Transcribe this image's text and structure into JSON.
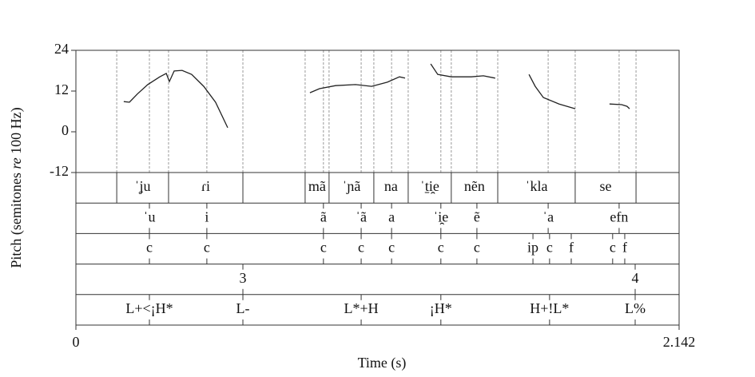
{
  "chart_data": {
    "type": "line",
    "ylabel": [
      "Pitch (semitones ",
      "re",
      " 100 Hz)"
    ],
    "xlabel": "Time (s)",
    "xlim": [
      0,
      2.142
    ],
    "xticks": [
      0,
      2.142
    ],
    "ylim": [
      -12,
      24
    ],
    "yticks": [
      -12,
      0,
      12,
      24
    ],
    "x": [
      0.17,
      0.19,
      0.218,
      0.255,
      0.298,
      0.321,
      0.332,
      0.349,
      0.377,
      0.411,
      0.454,
      0.496,
      0.539,
      null,
      0.831,
      0.865,
      0.922,
      0.993,
      1.05,
      1.106,
      1.149,
      1.169,
      null,
      1.26,
      1.285,
      1.333,
      1.404,
      1.447,
      1.489,
      null,
      1.609,
      1.631,
      1.66,
      1.716,
      1.773,
      null,
      1.895,
      1.938,
      1.957,
      1.966
    ],
    "series": [
      {
        "color": "#222222",
        "values": [
          8.9,
          8.7,
          11.1,
          13.9,
          16.2,
          17.2,
          14.8,
          17.9,
          18.1,
          16.9,
          13.4,
          8.7,
          1.2,
          null,
          11.5,
          12.7,
          13.6,
          13.9,
          13.4,
          14.6,
          16.2,
          15.8,
          null,
          20.0,
          16.9,
          16.2,
          16.2,
          16.5,
          15.8,
          null,
          16.9,
          13.4,
          10.1,
          8.2,
          6.8,
          null,
          8.2,
          8.0,
          7.5,
          6.8
        ]
      }
    ],
    "tiers": [
      {
        "kind": "interval",
        "boundaries": [
          0.145,
          0.329,
          0.593,
          0.814,
          0.899,
          1.058,
          1.18,
          1.333,
          1.498,
          1.773,
          1.989
        ],
        "labels": [
          "ˈʝu",
          "ɾi",
          null,
          "mã",
          "ˈɲã",
          "na",
          "ˈt̠i̯e",
          "nẽn",
          "ˈkla",
          "se"
        ]
      },
      {
        "kind": "point",
        "times": [
          0.261,
          0.465,
          0.879,
          1.013,
          1.121,
          1.296,
          1.424,
          1.677,
          1.929
        ],
        "labels": [
          "ˈu",
          "i",
          "ã",
          "ˈã",
          "a",
          "ˈi̯e",
          "ẽ",
          "ˈa",
          "efn"
        ]
      },
      {
        "kind": "point",
        "times": [
          0.261,
          0.465,
          0.879,
          1.013,
          1.121,
          1.296,
          1.424,
          1.623,
          1.682,
          1.759,
          1.906,
          1.949
        ],
        "labels": [
          "c",
          "c",
          "c",
          "c",
          "c",
          "c",
          "c",
          "ip",
          "c",
          "f",
          "c",
          "f"
        ]
      },
      {
        "kind": "point",
        "times": [
          0.593,
          1.986
        ],
        "labels": [
          "3",
          "4"
        ]
      },
      {
        "kind": "point",
        "times": [
          0.261,
          0.593,
          1.013,
          1.296,
          1.682,
          1.986
        ],
        "labels": [
          "L+<¡H*",
          "L-",
          "L*+H",
          "¡H*",
          "H+!L*",
          "L%"
        ]
      }
    ]
  }
}
